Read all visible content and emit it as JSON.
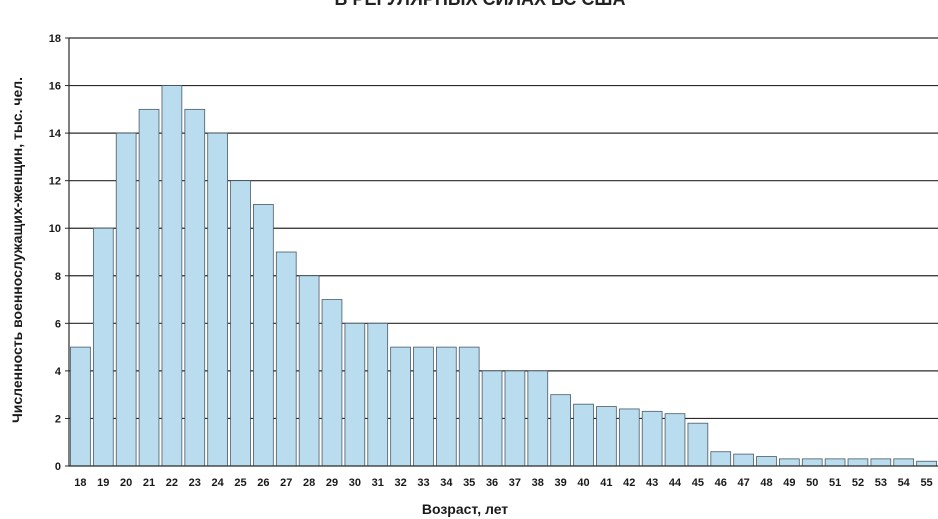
{
  "chart_data": {
    "type": "bar",
    "title": "В РЕГУЛЯРНЫХ СИЛАХ ВС США",
    "xlabel": "Возраст, лет",
    "ylabel": "Численность военнослужащих-женщин, тыс. чел.",
    "ylim": [
      0,
      18
    ],
    "yticks": [
      0,
      2,
      4,
      6,
      8,
      10,
      12,
      14,
      16,
      18
    ],
    "grid": true,
    "categories": [
      "18",
      "19",
      "20",
      "21",
      "22",
      "23",
      "24",
      "25",
      "26",
      "27",
      "28",
      "29",
      "30",
      "31",
      "32",
      "33",
      "34",
      "35",
      "36",
      "37",
      "38",
      "39",
      "40",
      "41",
      "42",
      "43",
      "44",
      "45",
      "46",
      "47",
      "48",
      "49",
      "50",
      "51",
      "52",
      "53",
      "54",
      "55"
    ],
    "values": [
      5,
      10,
      14,
      15,
      16,
      15,
      14,
      12,
      11,
      9,
      8,
      7,
      6,
      6,
      5,
      5,
      5,
      5,
      4,
      4,
      4,
      3,
      2.6,
      2.5,
      2.4,
      2.3,
      2.2,
      1.8,
      0.6,
      0.5,
      0.4,
      0.3,
      0.3,
      0.3,
      0.3,
      0.3,
      0.3,
      0.2
    ]
  },
  "colors": {
    "bar_fill": "#b9dcef",
    "bar_stroke": "#4a5a66",
    "gridline": "#2a2a2a",
    "text": "#1a1a1a"
  }
}
